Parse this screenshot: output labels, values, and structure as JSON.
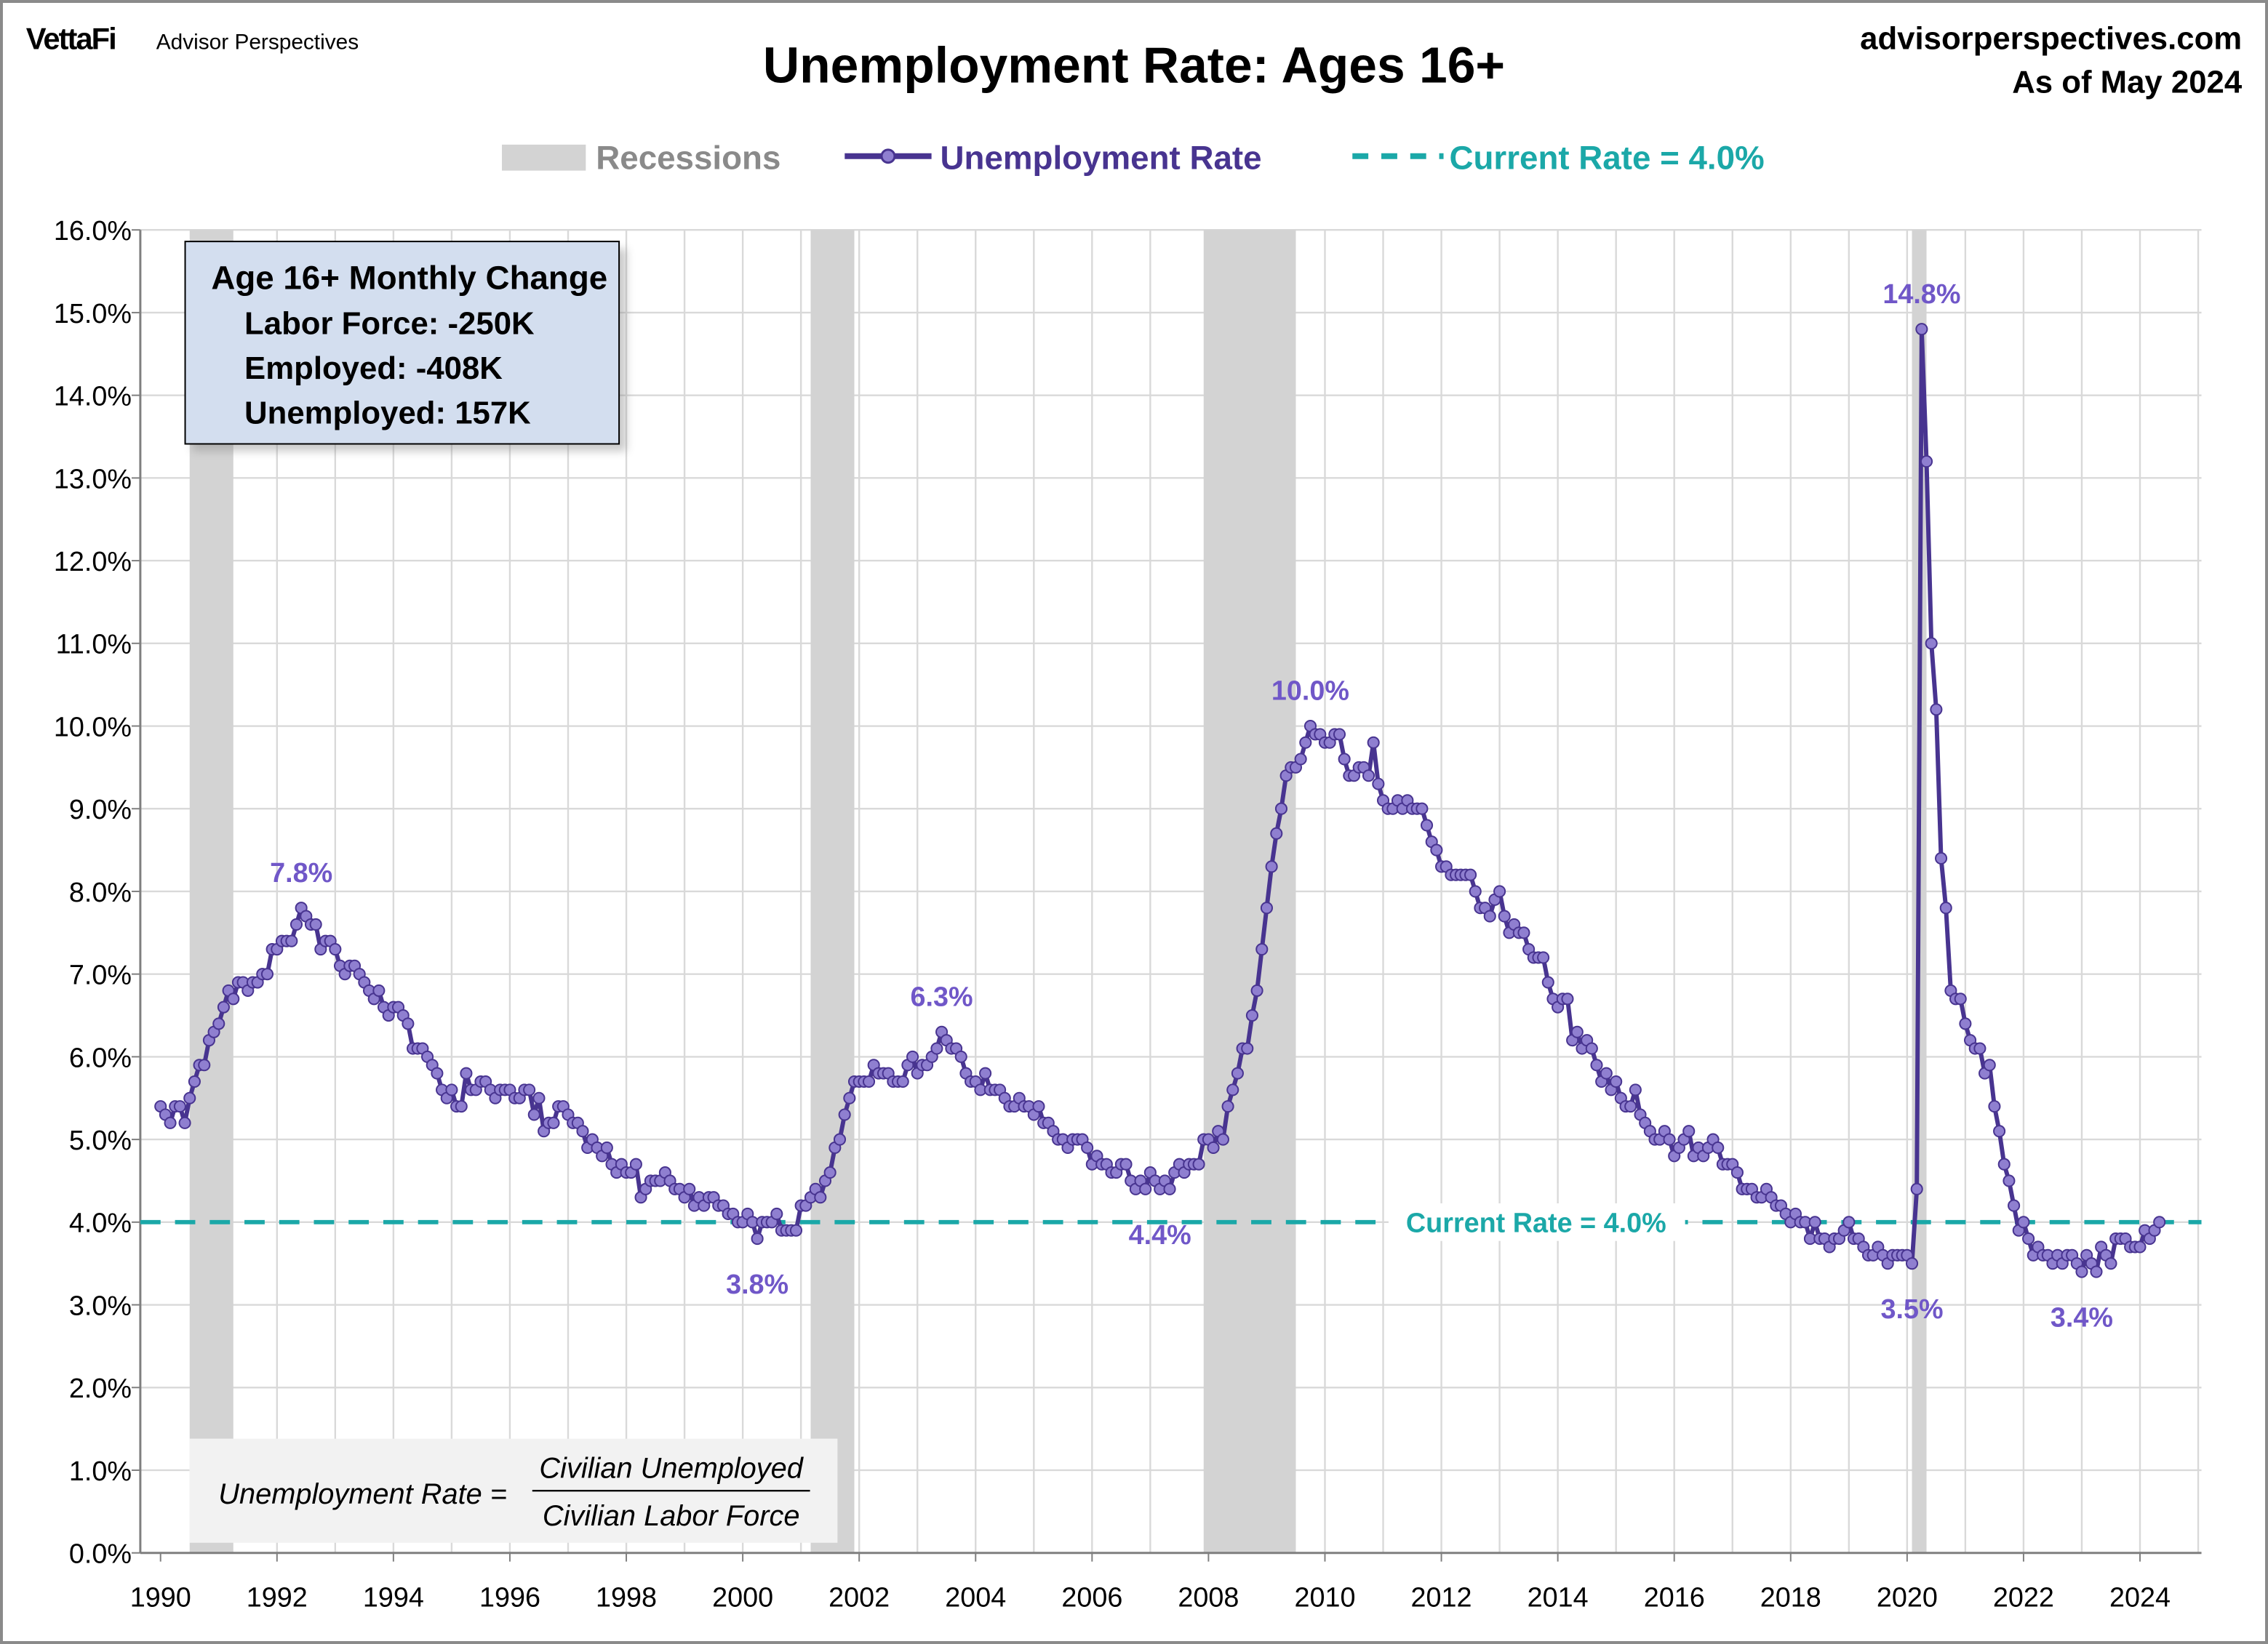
{
  "header": {
    "logo_brand": "VettaFi",
    "logo_sub": "Advisor Perspectives",
    "site": "advisorperspectives.com",
    "as_of": "As of May 2024"
  },
  "colors": {
    "line": "#483490",
    "marker": "#8F7FD0",
    "annotation": "#7057C8",
    "current_rate": "#1BA8A8",
    "recession": "#D3D3D3",
    "info_box": "#D3DEEF"
  },
  "info_box": {
    "title": "Age 16+ Monthly Change",
    "lines": [
      "Labor Force: -250K",
      "Employed: -408K",
      "Unemployed: 157K"
    ]
  },
  "formula": {
    "lhs": "Unemployment Rate =",
    "numerator": "Civilian Unemployed",
    "denominator": "Civilian Labor Force"
  },
  "chart_data": {
    "type": "line",
    "title": "Unemployment Rate: Ages 16+",
    "xlabel": "",
    "ylabel": "",
    "ylim": [
      0,
      16
    ],
    "y_tick_labels": [
      "0.0%",
      "1.0%",
      "2.0%",
      "3.0%",
      "4.0%",
      "5.0%",
      "6.0%",
      "7.0%",
      "8.0%",
      "9.0%",
      "10.0%",
      "11.0%",
      "12.0%",
      "13.0%",
      "14.0%",
      "15.0%",
      "16.0%"
    ],
    "x_tick_labels": [
      "1990",
      "1992",
      "1994",
      "1996",
      "1998",
      "2000",
      "2002",
      "2004",
      "2006",
      "2008",
      "2010",
      "2012",
      "2014",
      "2016",
      "2018",
      "2020",
      "2022",
      "2024"
    ],
    "grid": true,
    "legend_position": "top",
    "legend": {
      "recessions": "Recessions",
      "series": "Unemployment Rate",
      "current": "Current Rate = 4.0%"
    },
    "current_rate": 4.0,
    "current_rate_label": "Current Rate = 4.0%",
    "recessions": [
      {
        "start": "1990-07",
        "end": "1991-03"
      },
      {
        "start": "2001-03",
        "end": "2001-11"
      },
      {
        "start": "2007-12",
        "end": "2009-06"
      },
      {
        "start": "2020-02",
        "end": "2020-04"
      }
    ],
    "series": [
      {
        "name": "Unemployment Rate",
        "monthly_by_year": {
          "1990": [
            5.4,
            5.3,
            5.2,
            5.4,
            5.4,
            5.2,
            5.5,
            5.7,
            5.9,
            5.9,
            6.2,
            6.3
          ],
          "1991": [
            6.4,
            6.6,
            6.8,
            6.7,
            6.9,
            6.9,
            6.8,
            6.9,
            6.9,
            7.0,
            7.0,
            7.3
          ],
          "1992": [
            7.3,
            7.4,
            7.4,
            7.4,
            7.6,
            7.8,
            7.7,
            7.6,
            7.6,
            7.3,
            7.4,
            7.4
          ],
          "1993": [
            7.3,
            7.1,
            7.0,
            7.1,
            7.1,
            7.0,
            6.9,
            6.8,
            6.7,
            6.8,
            6.6,
            6.5
          ],
          "1994": [
            6.6,
            6.6,
            6.5,
            6.4,
            6.1,
            6.1,
            6.1,
            6.0,
            5.9,
            5.8,
            5.6,
            5.5
          ],
          "1995": [
            5.6,
            5.4,
            5.4,
            5.8,
            5.6,
            5.6,
            5.7,
            5.7,
            5.6,
            5.5,
            5.6,
            5.6
          ],
          "1996": [
            5.6,
            5.5,
            5.5,
            5.6,
            5.6,
            5.3,
            5.5,
            5.1,
            5.2,
            5.2,
            5.4,
            5.4
          ],
          "1997": [
            5.3,
            5.2,
            5.2,
            5.1,
            4.9,
            5.0,
            4.9,
            4.8,
            4.9,
            4.7,
            4.6,
            4.7
          ],
          "1998": [
            4.6,
            4.6,
            4.7,
            4.3,
            4.4,
            4.5,
            4.5,
            4.5,
            4.6,
            4.5,
            4.4,
            4.4
          ],
          "1999": [
            4.3,
            4.4,
            4.2,
            4.3,
            4.2,
            4.3,
            4.3,
            4.2,
            4.2,
            4.1,
            4.1,
            4.0
          ],
          "2000": [
            4.0,
            4.1,
            4.0,
            3.8,
            4.0,
            4.0,
            4.0,
            4.1,
            3.9,
            3.9,
            3.9,
            3.9
          ],
          "2001": [
            4.2,
            4.2,
            4.3,
            4.4,
            4.3,
            4.5,
            4.6,
            4.9,
            5.0,
            5.3,
            5.5,
            5.7
          ],
          "2002": [
            5.7,
            5.7,
            5.7,
            5.9,
            5.8,
            5.8,
            5.8,
            5.7,
            5.7,
            5.7,
            5.9,
            6.0
          ],
          "2003": [
            5.8,
            5.9,
            5.9,
            6.0,
            6.1,
            6.3,
            6.2,
            6.1,
            6.1,
            6.0,
            5.8,
            5.7
          ],
          "2004": [
            5.7,
            5.6,
            5.8,
            5.6,
            5.6,
            5.6,
            5.5,
            5.4,
            5.4,
            5.5,
            5.4,
            5.4
          ],
          "2005": [
            5.3,
            5.4,
            5.2,
            5.2,
            5.1,
            5.0,
            5.0,
            4.9,
            5.0,
            5.0,
            5.0,
            4.9
          ],
          "2006": [
            4.7,
            4.8,
            4.7,
            4.7,
            4.6,
            4.6,
            4.7,
            4.7,
            4.5,
            4.4,
            4.5,
            4.4
          ],
          "2007": [
            4.6,
            4.5,
            4.4,
            4.5,
            4.4,
            4.6,
            4.7,
            4.6,
            4.7,
            4.7,
            4.7,
            5.0
          ],
          "2008": [
            5.0,
            4.9,
            5.1,
            5.0,
            5.4,
            5.6,
            5.8,
            6.1,
            6.1,
            6.5,
            6.8,
            7.3
          ],
          "2009": [
            7.8,
            8.3,
            8.7,
            9.0,
            9.4,
            9.5,
            9.5,
            9.6,
            9.8,
            10.0,
            9.9,
            9.9
          ],
          "2010": [
            9.8,
            9.8,
            9.9,
            9.9,
            9.6,
            9.4,
            9.4,
            9.5,
            9.5,
            9.4,
            9.8,
            9.3
          ],
          "2011": [
            9.1,
            9.0,
            9.0,
            9.1,
            9.0,
            9.1,
            9.0,
            9.0,
            9.0,
            8.8,
            8.6,
            8.5
          ],
          "2012": [
            8.3,
            8.3,
            8.2,
            8.2,
            8.2,
            8.2,
            8.2,
            8.0,
            7.8,
            7.8,
            7.7,
            7.9
          ],
          "2013": [
            8.0,
            7.7,
            7.5,
            7.6,
            7.5,
            7.5,
            7.3,
            7.2,
            7.2,
            7.2,
            6.9,
            6.7
          ],
          "2014": [
            6.6,
            6.7,
            6.7,
            6.2,
            6.3,
            6.1,
            6.2,
            6.1,
            5.9,
            5.7,
            5.8,
            5.6
          ],
          "2015": [
            5.7,
            5.5,
            5.4,
            5.4,
            5.6,
            5.3,
            5.2,
            5.1,
            5.0,
            5.0,
            5.1,
            5.0
          ],
          "2016": [
            4.8,
            4.9,
            5.0,
            5.1,
            4.8,
            4.9,
            4.8,
            4.9,
            5.0,
            4.9,
            4.7,
            4.7
          ],
          "2017": [
            4.7,
            4.6,
            4.4,
            4.4,
            4.4,
            4.3,
            4.3,
            4.4,
            4.3,
            4.2,
            4.2,
            4.1
          ],
          "2018": [
            4.0,
            4.1,
            4.0,
            4.0,
            3.8,
            4.0,
            3.8,
            3.8,
            3.7,
            3.8,
            3.8,
            3.9
          ],
          "2019": [
            4.0,
            3.8,
            3.8,
            3.7,
            3.6,
            3.6,
            3.7,
            3.6,
            3.5,
            3.6,
            3.6,
            3.6
          ],
          "2020": [
            3.6,
            3.5,
            4.4,
            14.8,
            13.2,
            11.0,
            10.2,
            8.4,
            7.8,
            6.8,
            6.7,
            6.7
          ],
          "2021": [
            6.4,
            6.2,
            6.1,
            6.1,
            5.8,
            5.9,
            5.4,
            5.1,
            4.7,
            4.5,
            4.2,
            3.9
          ],
          "2022": [
            4.0,
            3.8,
            3.6,
            3.7,
            3.6,
            3.6,
            3.5,
            3.6,
            3.5,
            3.6,
            3.6,
            3.5
          ],
          "2023": [
            3.4,
            3.6,
            3.5,
            3.4,
            3.7,
            3.6,
            3.5,
            3.8,
            3.8,
            3.8,
            3.7,
            3.7
          ],
          "2024": [
            3.7,
            3.9,
            3.8,
            3.9,
            4.0
          ]
        }
      }
    ],
    "annotations": [
      {
        "label": "7.8%",
        "date": "1992-06",
        "value": 7.8,
        "pos": "above"
      },
      {
        "label": "3.8%",
        "date": "2000-04",
        "value": 3.8,
        "pos": "below"
      },
      {
        "label": "6.3%",
        "date": "2003-06",
        "value": 6.3,
        "pos": "above"
      },
      {
        "label": "4.4%",
        "date": "2007-03",
        "value": 4.4,
        "pos": "below"
      },
      {
        "label": "10.0%",
        "date": "2009-10",
        "value": 10.0,
        "pos": "above"
      },
      {
        "label": "14.8%",
        "date": "2020-04",
        "value": 14.8,
        "pos": "above"
      },
      {
        "label": "3.5%",
        "date": "2020-02",
        "value": 3.5,
        "pos": "below"
      },
      {
        "label": "3.4%",
        "date": "2023-01",
        "value": 3.4,
        "pos": "below"
      }
    ]
  }
}
